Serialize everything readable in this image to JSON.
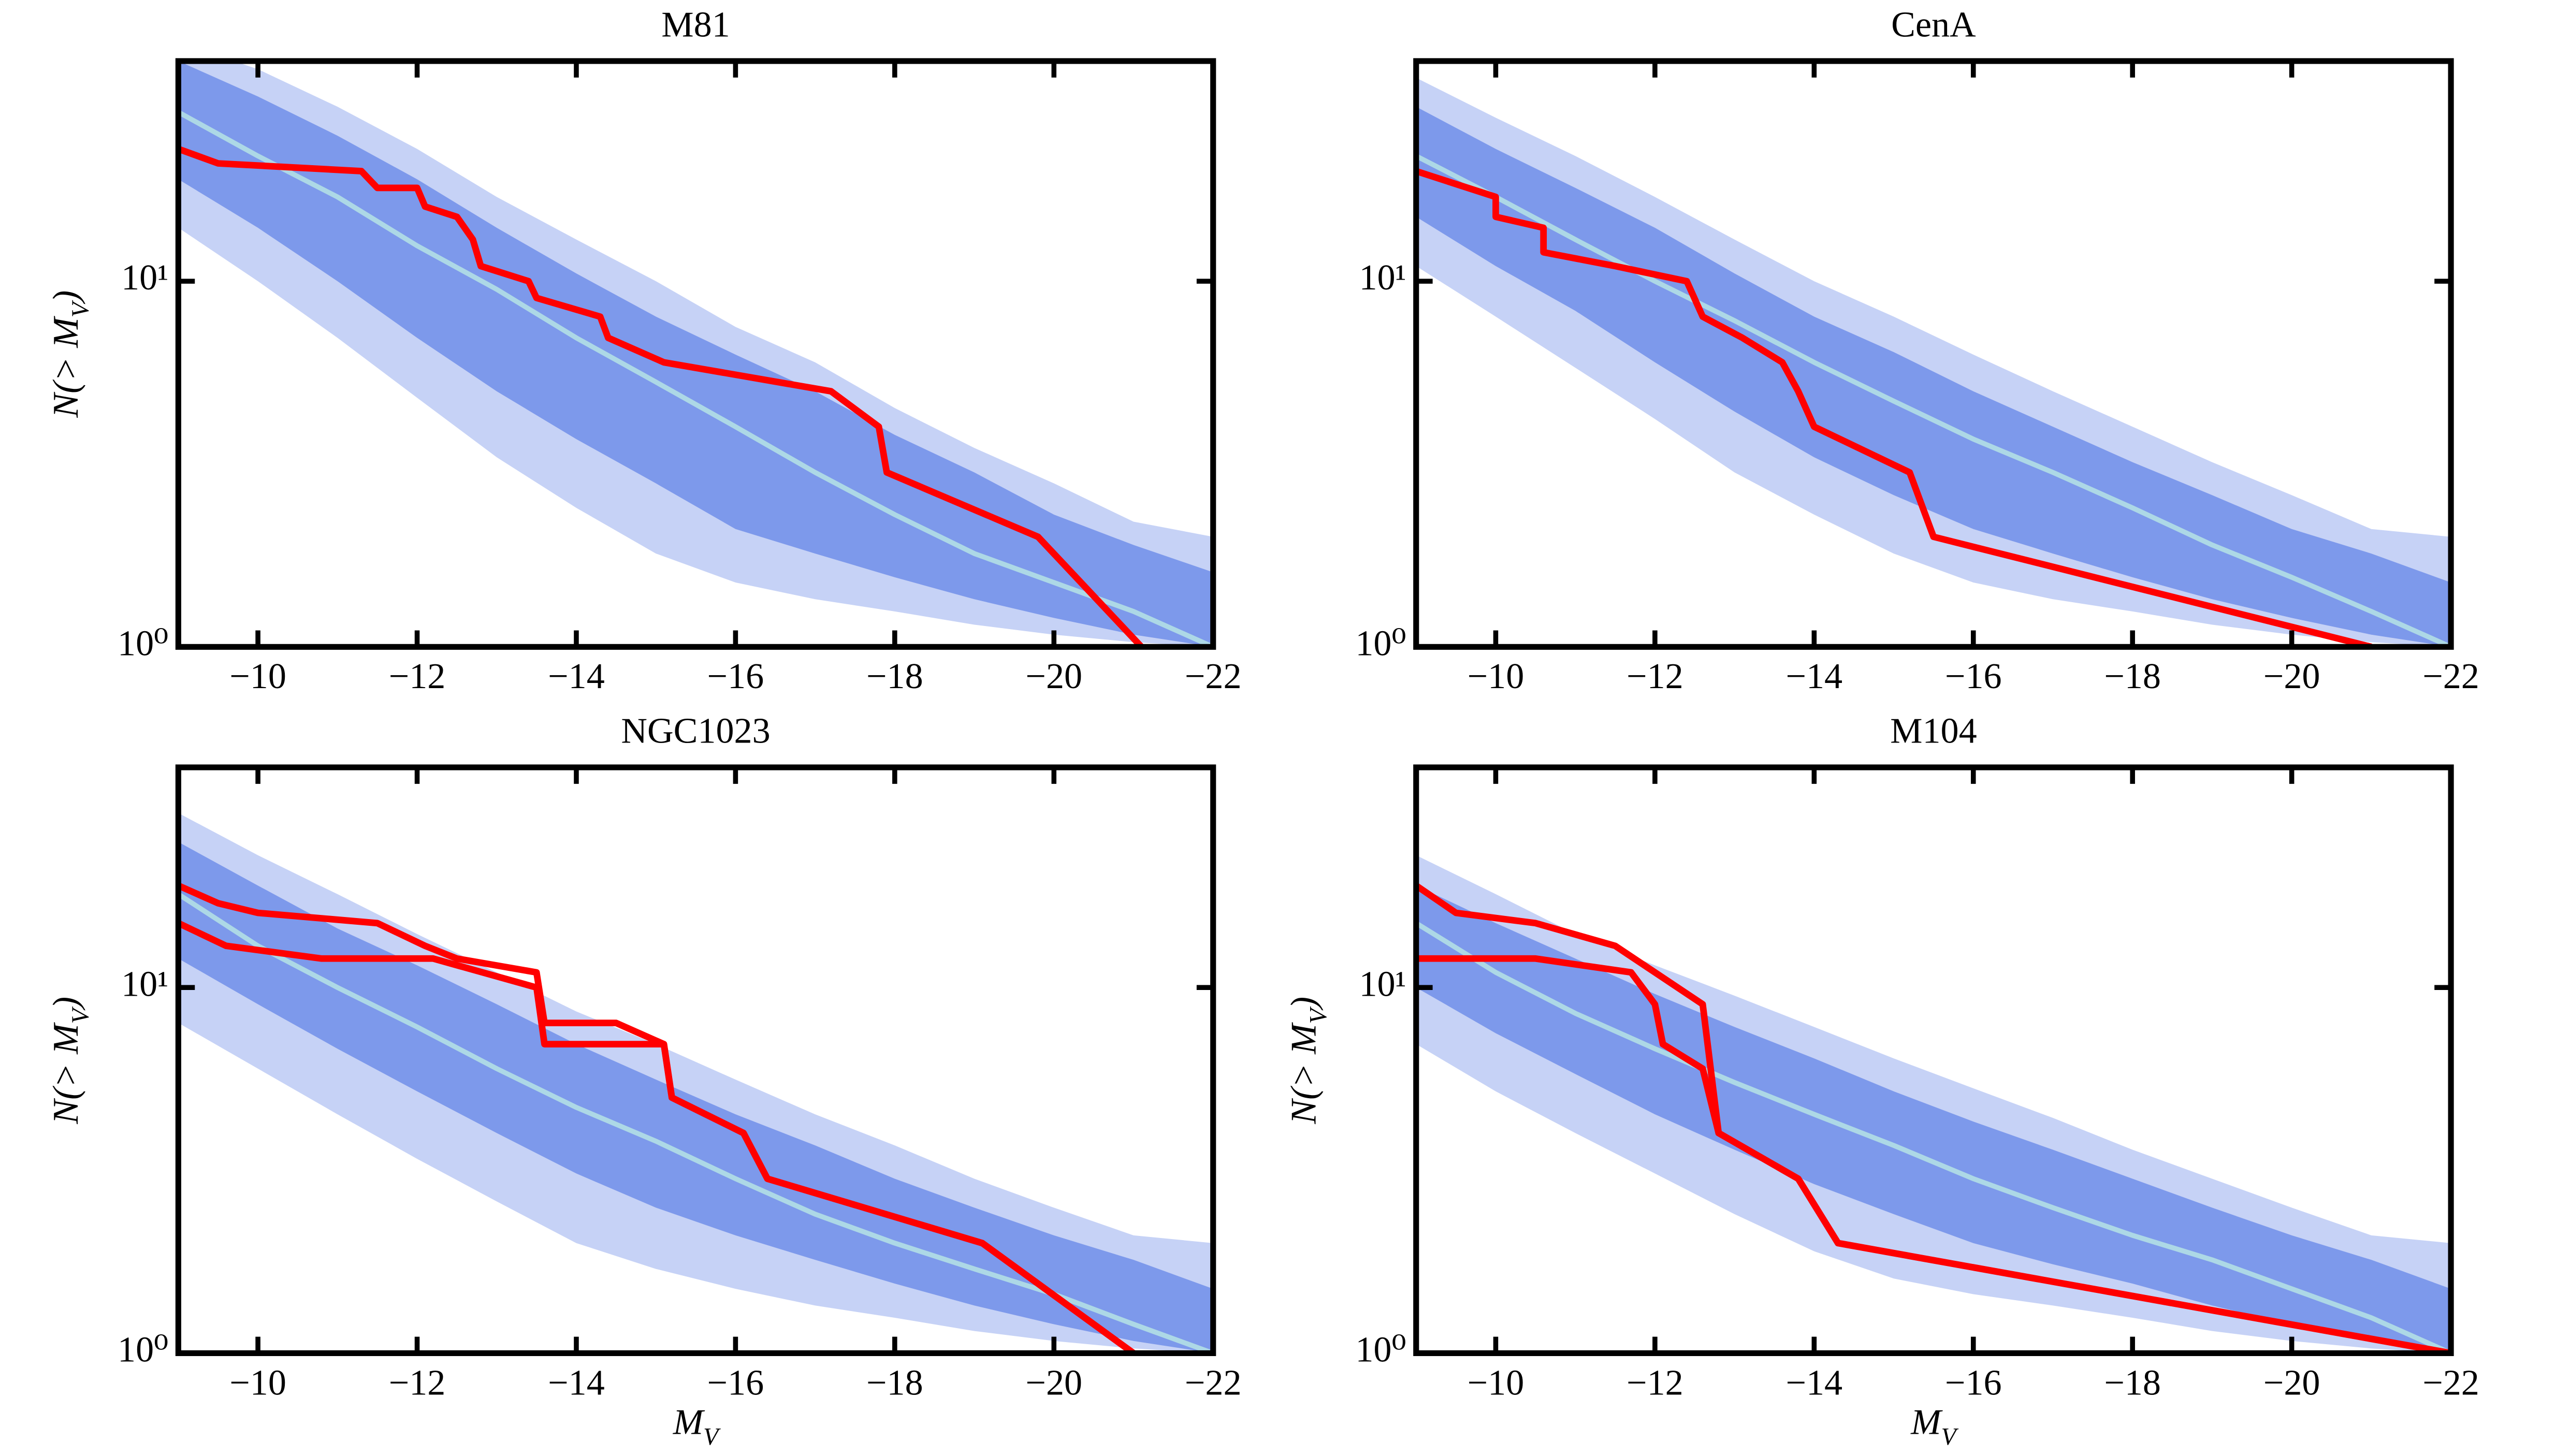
{
  "chart_data": [
    {
      "type": "line",
      "title": "M81",
      "ylabel": "N(> M_V)",
      "xlim": [
        -9,
        -22
      ],
      "ylim": [
        1,
        40
      ],
      "yscale": "log",
      "xticks": [
        {
          "value": -10,
          "label": "−10"
        },
        {
          "value": -12,
          "label": "−12"
        },
        {
          "value": -14,
          "label": "−14"
        },
        {
          "value": -16,
          "label": "−16"
        },
        {
          "value": -18,
          "label": "−18"
        },
        {
          "value": -20,
          "label": "−20"
        },
        {
          "value": -22,
          "label": "−22"
        }
      ],
      "yticks": [
        {
          "value": 1,
          "label": "10⁰"
        },
        {
          "value": 10,
          "label": "10¹"
        }
      ],
      "x": [
        -9,
        -10,
        -11,
        -12,
        -13,
        -14,
        -15,
        -16,
        -17,
        -18,
        -19,
        -20,
        -21,
        -22
      ],
      "bands": [
        {
          "color": "#4169e1",
          "opacity": 0.3,
          "upper": [
            45,
            38,
            30,
            23,
            17,
            13,
            10,
            7.5,
            6,
            4.5,
            3.5,
            2.8,
            2.2,
            2
          ],
          "lower": [
            14,
            10,
            7,
            4.8,
            3.3,
            2.4,
            1.8,
            1.5,
            1.35,
            1.25,
            1.15,
            1.08,
            1.03,
            1
          ]
        },
        {
          "color": "#4169e1",
          "opacity": 0.55,
          "upper": [
            40,
            32,
            25,
            19,
            14,
            10.5,
            8,
            6.3,
            5,
            3.8,
            3,
            2.3,
            1.9,
            1.6
          ],
          "lower": [
            19,
            14,
            10,
            7,
            5,
            3.7,
            2.8,
            2.1,
            1.8,
            1.55,
            1.35,
            1.2,
            1.08,
            1
          ]
        }
      ],
      "median": {
        "color": "#add8e6",
        "values": [
          29,
          22,
          17,
          12.5,
          9.5,
          7,
          5.3,
          4,
          3,
          2.3,
          1.8,
          1.5,
          1.25,
          1
        ]
      },
      "series": [
        {
          "color": "#ff0000",
          "x": [
            -9,
            -9.5,
            -11.3,
            -11.5,
            -12,
            -12.1,
            -12.5,
            -12.7,
            -12.8,
            -13.4,
            -13.5,
            -14.3,
            -14.4,
            -15.1,
            -17.2,
            -17.8,
            -17.9,
            -19.8,
            -21.1
          ],
          "values": [
            23,
            21,
            20,
            18,
            18,
            16,
            15,
            13,
            11,
            10,
            9,
            8,
            7,
            6,
            5,
            4,
            3,
            2,
            1
          ]
        }
      ]
    },
    {
      "type": "line",
      "title": "CenA",
      "xlim": [
        -9,
        -22
      ],
      "ylim": [
        1,
        40
      ],
      "yscale": "log",
      "xticks": [
        {
          "value": -10,
          "label": "−10"
        },
        {
          "value": -12,
          "label": "−12"
        },
        {
          "value": -14,
          "label": "−14"
        },
        {
          "value": -16,
          "label": "−16"
        },
        {
          "value": -18,
          "label": "−18"
        },
        {
          "value": -20,
          "label": "−20"
        },
        {
          "value": -22,
          "label": "−22"
        }
      ],
      "yticks": [
        {
          "value": 1,
          "label": "10⁰"
        },
        {
          "value": 10,
          "label": "10¹"
        }
      ],
      "x": [
        -9,
        -10,
        -11,
        -12,
        -13,
        -14,
        -15,
        -16,
        -17,
        -18,
        -19,
        -20,
        -21,
        -22
      ],
      "bands": [
        {
          "color": "#4169e1",
          "opacity": 0.3,
          "upper": [
            36,
            28,
            22,
            17,
            13,
            10,
            8,
            6.3,
            5,
            4,
            3.2,
            2.6,
            2.1,
            2
          ],
          "lower": [
            11,
            8,
            5.8,
            4.2,
            3,
            2.3,
            1.8,
            1.5,
            1.35,
            1.25,
            1.15,
            1.08,
            1.03,
            1
          ]
        },
        {
          "color": "#4169e1",
          "opacity": 0.55,
          "upper": [
            30,
            23,
            18,
            14,
            10.5,
            8,
            6.4,
            5,
            4,
            3.2,
            2.6,
            2.1,
            1.8,
            1.5
          ],
          "lower": [
            15,
            11,
            8.3,
            6,
            4.4,
            3.3,
            2.6,
            2.1,
            1.8,
            1.55,
            1.35,
            1.2,
            1.08,
            1
          ]
        }
      ],
      "median": {
        "color": "#add8e6",
        "values": [
          22,
          17,
          13,
          10,
          7.8,
          6,
          4.7,
          3.7,
          3,
          2.4,
          1.9,
          1.55,
          1.25,
          1
        ]
      },
      "series": [
        {
          "color": "#ff0000",
          "x": [
            -9,
            -10,
            -10,
            -10.6,
            -10.6,
            -11.5,
            -12.4,
            -12.6,
            -13.1,
            -13.6,
            -13.8,
            -14,
            -15.2,
            -15.5,
            -21
          ],
          "values": [
            20,
            17,
            15,
            14,
            12,
            11,
            10,
            8,
            7,
            6,
            5,
            4,
            3,
            2,
            1
          ]
        }
      ]
    },
    {
      "type": "line",
      "title": "NGC1023",
      "xlabel": "M_V",
      "ylabel": "N(> M_V)",
      "xlim": [
        -9,
        -22
      ],
      "ylim": [
        1,
        40
      ],
      "yscale": "log",
      "xticks": [
        {
          "value": -10,
          "label": "−10"
        },
        {
          "value": -12,
          "label": "−12"
        },
        {
          "value": -14,
          "label": "−14"
        },
        {
          "value": -16,
          "label": "−16"
        },
        {
          "value": -18,
          "label": "−18"
        },
        {
          "value": -20,
          "label": "−20"
        },
        {
          "value": -22,
          "label": "−22"
        }
      ],
      "yticks": [
        {
          "value": 1,
          "label": "10⁰"
        },
        {
          "value": 10,
          "label": "10¹"
        }
      ],
      "x": [
        -9,
        -10,
        -11,
        -12,
        -13,
        -14,
        -15,
        -16,
        -17,
        -18,
        -19,
        -20,
        -21,
        -22
      ],
      "bands": [
        {
          "color": "#4169e1",
          "opacity": 0.3,
          "upper": [
            30,
            23,
            18,
            14,
            11,
            8.6,
            7,
            5.6,
            4.5,
            3.7,
            3,
            2.5,
            2.1,
            2
          ],
          "lower": [
            8,
            6,
            4.5,
            3.4,
            2.6,
            2,
            1.7,
            1.5,
            1.35,
            1.25,
            1.15,
            1.08,
            1.03,
            1
          ]
        },
        {
          "color": "#4169e1",
          "opacity": 0.55,
          "upper": [
            25,
            19,
            14.5,
            11.5,
            9,
            7,
            5.6,
            4.5,
            3.7,
            3,
            2.5,
            2.1,
            1.8,
            1.5
          ],
          "lower": [
            12,
            9,
            6.8,
            5.2,
            4,
            3.1,
            2.5,
            2.1,
            1.8,
            1.55,
            1.35,
            1.2,
            1.08,
            1
          ]
        }
      ],
      "median": {
        "color": "#add8e6",
        "values": [
          18,
          13,
          10,
          7.8,
          6,
          4.7,
          3.8,
          3,
          2.4,
          2,
          1.7,
          1.45,
          1.2,
          1
        ]
      },
      "series": [
        {
          "color": "#ff0000",
          "x": [
            -9,
            -9.5,
            -10,
            -11.5,
            -12.1,
            -12.5,
            -13.5,
            -13.6,
            -14.5,
            -15.1,
            -15.2,
            -16.1,
            -16.4,
            -19.1,
            -21
          ],
          "values": [
            19,
            17,
            16,
            15,
            13,
            12,
            11,
            8,
            8,
            7,
            5,
            4,
            3,
            2,
            1
          ]
        },
        {
          "color": "#ff0000",
          "x": [
            -9,
            -9.6,
            -10.8,
            -12.2,
            -13.5,
            -13.6,
            -14.4,
            -15.1,
            -15.2,
            -16.1,
            -16.4,
            -19.1,
            -21
          ],
          "values": [
            15,
            13,
            12,
            12,
            10,
            7,
            7,
            7,
            5,
            4,
            3,
            2,
            1
          ]
        }
      ]
    },
    {
      "type": "line",
      "title": "M104",
      "xlabel": "M_V",
      "ylabel": "N(> M_V)",
      "xlim": [
        -9,
        -22
      ],
      "ylim": [
        1,
        40
      ],
      "yscale": "log",
      "xticks": [
        {
          "value": -10,
          "label": "−10"
        },
        {
          "value": -12,
          "label": "−12"
        },
        {
          "value": -14,
          "label": "−14"
        },
        {
          "value": -16,
          "label": "−16"
        },
        {
          "value": -18,
          "label": "−18"
        },
        {
          "value": -20,
          "label": "−20"
        },
        {
          "value": -22,
          "label": "−22"
        }
      ],
      "yticks": [
        {
          "value": 1,
          "label": "10⁰"
        },
        {
          "value": 10,
          "label": "10¹"
        }
      ],
      "x": [
        -9,
        -10,
        -11,
        -12,
        -13,
        -14,
        -15,
        -16,
        -17,
        -18,
        -19,
        -20,
        -21,
        -22
      ],
      "bands": [
        {
          "color": "#4169e1",
          "opacity": 0.3,
          "upper": [
            23,
            18,
            14,
            11.5,
            9.5,
            7.8,
            6.4,
            5.3,
            4.4,
            3.6,
            3,
            2.5,
            2.1,
            2
          ],
          "lower": [
            7,
            5.2,
            4,
            3.1,
            2.4,
            1.9,
            1.6,
            1.45,
            1.35,
            1.25,
            1.15,
            1.08,
            1.03,
            1
          ]
        },
        {
          "color": "#4169e1",
          "opacity": 0.55,
          "upper": [
            19,
            15,
            12,
            9.6,
            7.8,
            6.4,
            5.2,
            4.3,
            3.6,
            3,
            2.5,
            2.1,
            1.8,
            1.5
          ],
          "lower": [
            10,
            7.5,
            5.8,
            4.5,
            3.6,
            2.9,
            2.4,
            2,
            1.75,
            1.55,
            1.35,
            1.2,
            1.08,
            1
          ]
        }
      ],
      "median": {
        "color": "#add8e6",
        "values": [
          15,
          11,
          8.5,
          6.8,
          5.5,
          4.5,
          3.7,
          3,
          2.5,
          2.1,
          1.8,
          1.5,
          1.25,
          1
        ]
      },
      "series": [
        {
          "color": "#ff0000",
          "x": [
            -9,
            -9.5,
            -10.5,
            -11.5,
            -12,
            -12.6,
            -12.8,
            -13.8,
            -14.3,
            -22
          ],
          "values": [
            19,
            16,
            15,
            13,
            11,
            9,
            4,
            3,
            2,
            1
          ]
        },
        {
          "color": "#ff0000",
          "x": [
            -9,
            -10.5,
            -11.7,
            -12,
            -12.1,
            -12.6,
            -12.8,
            -13.8,
            -14.3,
            -22
          ],
          "values": [
            12,
            12,
            11,
            9,
            7,
            6,
            4,
            3,
            2,
            1
          ]
        }
      ]
    }
  ]
}
